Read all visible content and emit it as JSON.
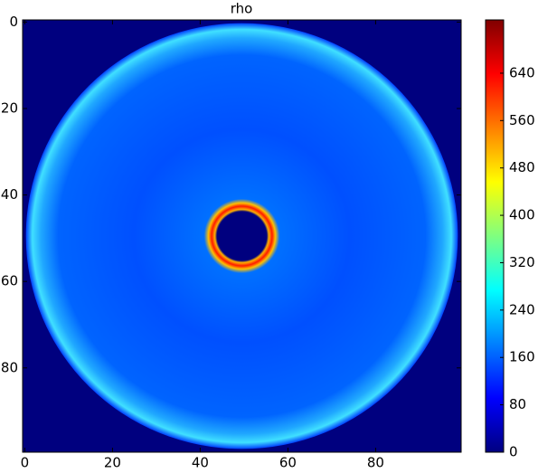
{
  "chart_data": {
    "type": "heatmap",
    "title": "rho",
    "xlim": [
      -0.5,
      99.5
    ],
    "ylim": [
      99.5,
      -0.5
    ],
    "xticks": [
      0,
      20,
      40,
      60,
      80
    ],
    "yticks": [
      0,
      20,
      40,
      60,
      80
    ],
    "colormap": "jet",
    "colorbar": {
      "lim": [
        0,
        730
      ],
      "ticks": [
        0,
        80,
        160,
        240,
        320,
        400,
        480,
        560,
        640
      ]
    }
  }
}
